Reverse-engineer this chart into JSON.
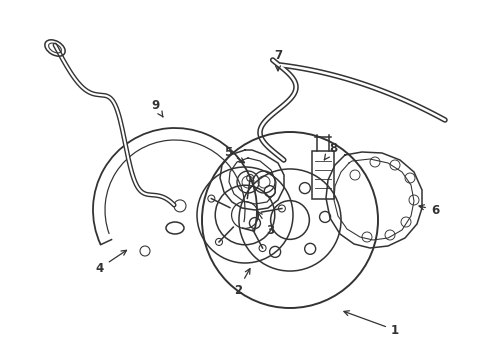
{
  "bg_color": "#ffffff",
  "line_color": "#333333",
  "lw": 1.1,
  "font_size": 8.5,
  "figsize": [
    4.89,
    3.6
  ],
  "dpi": 100,
  "xlim": [
    0,
    489
  ],
  "ylim": [
    0,
    360
  ]
}
